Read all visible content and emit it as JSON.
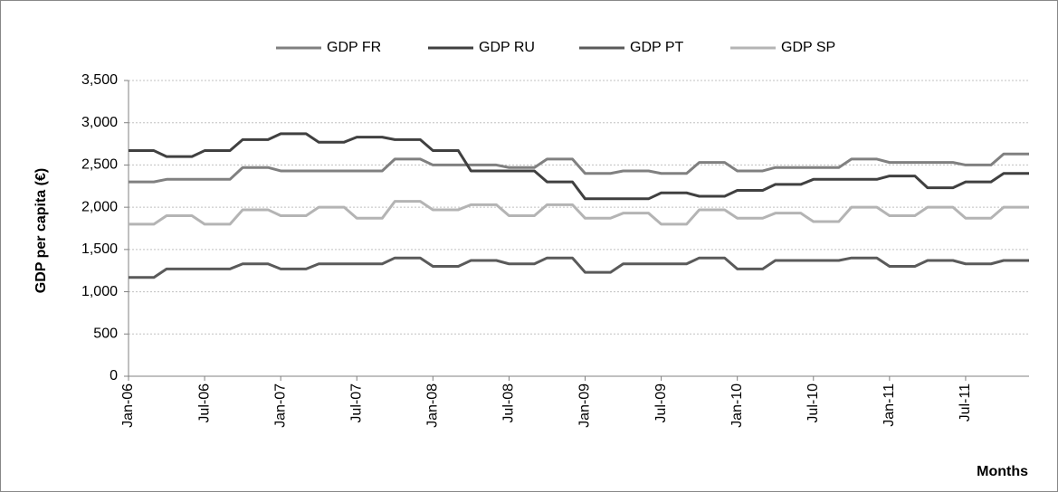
{
  "chart_data": {
    "type": "line",
    "x_label": "Months",
    "y_label": "GDP per capita (€)",
    "categories": [
      "Jan-06",
      null,
      null,
      null,
      null,
      null,
      "Jul-06",
      null,
      null,
      null,
      null,
      null,
      "Jan-07",
      null,
      null,
      null,
      null,
      null,
      "Jul-07",
      null,
      null,
      null,
      null,
      null,
      "Jan-08",
      null,
      null,
      null,
      null,
      null,
      "Jul-08",
      null,
      null,
      null,
      null,
      null,
      "Jan-09",
      null,
      null,
      null,
      null,
      null,
      "Jul-09",
      null,
      null,
      null,
      null,
      null,
      "Jan-10",
      null,
      null,
      null,
      null,
      null,
      "Jul-10",
      null,
      null,
      null,
      null,
      null,
      "Jan-11",
      null,
      null,
      null,
      null,
      null,
      "Jul-11",
      null,
      null,
      null,
      null,
      null
    ],
    "series": [
      {
        "name": "GDP FR",
        "color": "#808080",
        "values": [
          2300,
          2300,
          2300,
          2330,
          2330,
          2330,
          2330,
          2330,
          2330,
          2470,
          2470,
          2470,
          2430,
          2430,
          2430,
          2430,
          2430,
          2430,
          2430,
          2430,
          2430,
          2570,
          2570,
          2570,
          2500,
          2500,
          2500,
          2500,
          2500,
          2500,
          2470,
          2470,
          2470,
          2570,
          2570,
          2570,
          2400,
          2400,
          2400,
          2430,
          2430,
          2430,
          2400,
          2400,
          2400,
          2530,
          2530,
          2530,
          2430,
          2430,
          2430,
          2470,
          2470,
          2470,
          2470,
          2470,
          2470,
          2570,
          2570,
          2570,
          2530,
          2530,
          2530,
          2530,
          2530,
          2530,
          2500,
          2500,
          2500,
          2630,
          2630,
          2630
        ]
      },
      {
        "name": "GDP RU",
        "color": "#404040",
        "values": [
          2670,
          2670,
          2670,
          2600,
          2600,
          2600,
          2670,
          2670,
          2670,
          2800,
          2800,
          2800,
          2870,
          2870,
          2870,
          2770,
          2770,
          2770,
          2830,
          2830,
          2830,
          2800,
          2800,
          2800,
          2670,
          2670,
          2670,
          2430,
          2430,
          2430,
          2430,
          2430,
          2430,
          2300,
          2300,
          2300,
          2100,
          2100,
          2100,
          2100,
          2100,
          2100,
          2170,
          2170,
          2170,
          2130,
          2130,
          2130,
          2200,
          2200,
          2200,
          2270,
          2270,
          2270,
          2330,
          2330,
          2330,
          2330,
          2330,
          2330,
          2370,
          2370,
          2370,
          2230,
          2230,
          2230,
          2300,
          2300,
          2300,
          2400,
          2400,
          2400
        ]
      },
      {
        "name": "GDP PT",
        "color": "#5a5a5a",
        "values": [
          1170,
          1170,
          1170,
          1270,
          1270,
          1270,
          1270,
          1270,
          1270,
          1330,
          1330,
          1330,
          1270,
          1270,
          1270,
          1330,
          1330,
          1330,
          1330,
          1330,
          1330,
          1400,
          1400,
          1400,
          1300,
          1300,
          1300,
          1370,
          1370,
          1370,
          1330,
          1330,
          1330,
          1400,
          1400,
          1400,
          1230,
          1230,
          1230,
          1330,
          1330,
          1330,
          1330,
          1330,
          1330,
          1400,
          1400,
          1400,
          1270,
          1270,
          1270,
          1370,
          1370,
          1370,
          1370,
          1370,
          1370,
          1400,
          1400,
          1400,
          1300,
          1300,
          1300,
          1370,
          1370,
          1370,
          1330,
          1330,
          1330,
          1370,
          1370,
          1370
        ]
      },
      {
        "name": "GDP SP",
        "color": "#b4b4b4",
        "values": [
          1800,
          1800,
          1800,
          1900,
          1900,
          1900,
          1800,
          1800,
          1800,
          1970,
          1970,
          1970,
          1900,
          1900,
          1900,
          2000,
          2000,
          2000,
          1870,
          1870,
          1870,
          2070,
          2070,
          2070,
          1970,
          1970,
          1970,
          2030,
          2030,
          2030,
          1900,
          1900,
          1900,
          2030,
          2030,
          2030,
          1870,
          1870,
          1870,
          1930,
          1930,
          1930,
          1800,
          1800,
          1800,
          1970,
          1970,
          1970,
          1870,
          1870,
          1870,
          1930,
          1930,
          1930,
          1830,
          1830,
          1830,
          2000,
          2000,
          2000,
          1900,
          1900,
          1900,
          2000,
          2000,
          2000,
          1870,
          1870,
          1870,
          2000,
          2000,
          2000
        ]
      }
    ],
    "ylim": [
      0,
      3500
    ],
    "yticks": [
      0,
      500,
      {
        "value": 1000,
        "label": "1,000"
      },
      {
        "value": 1500,
        "label": "1,500"
      },
      {
        "value": 2000,
        "label": "2,000"
      },
      {
        "value": 2500,
        "label": "2,500"
      },
      {
        "value": 3000,
        "label": "3,000"
      },
      {
        "value": 3500,
        "label": "3,500"
      }
    ],
    "grid": true,
    "legend": "top"
  }
}
